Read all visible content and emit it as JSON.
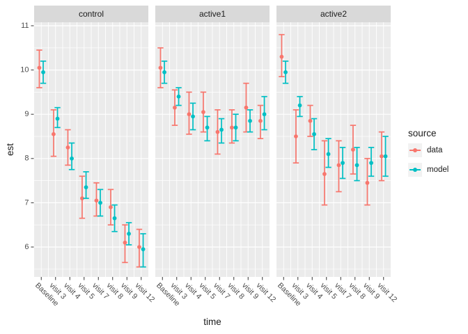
{
  "chart_data": {
    "type": "pointrange",
    "title": "",
    "xlabel": "time",
    "ylabel": "est",
    "facets": [
      "control",
      "active1",
      "active2"
    ],
    "categories": [
      "Baseline",
      "visit 3",
      "visit 4",
      "visit 5",
      "visit 7",
      "visit 8",
      "visit 9",
      "visit 12"
    ],
    "y_axis": {
      "ticks": [
        11,
        10,
        9,
        8,
        7,
        6
      ],
      "minor_step": 0.5,
      "ylim": [
        5.3,
        11.1
      ],
      "grid": "on"
    },
    "legend": {
      "title": "source",
      "position": "right",
      "entries": [
        {
          "label": "data",
          "color": "#F8766D"
        },
        {
          "label": "model",
          "color": "#00BFC4"
        }
      ]
    },
    "colors": {
      "data": "#F8766D",
      "model": "#00BFC4",
      "panel_bg": "#EBEBEB",
      "strip_bg": "#D9D9D9",
      "grid": "#FFFFFF",
      "tick": "#333333",
      "axis_text": "#4D4D4D",
      "legend_key_bg": "#F2F2F2"
    },
    "panels": [
      {
        "facet": "control",
        "series": [
          {
            "name": "data",
            "points": [
              {
                "est": 10.05,
                "lo": 9.6,
                "hi": 10.45
              },
              {
                "est": 8.55,
                "lo": 8.05,
                "hi": 9.1
              },
              {
                "est": 8.25,
                "lo": 7.85,
                "hi": 8.65
              },
              {
                "est": 7.1,
                "lo": 6.65,
                "hi": 7.6
              },
              {
                "est": 7.05,
                "lo": 6.7,
                "hi": 7.45
              },
              {
                "est": 6.9,
                "lo": 6.5,
                "hi": 7.3
              },
              {
                "est": 6.1,
                "lo": 5.65,
                "hi": 6.5
              },
              {
                "est": 6.0,
                "lo": 5.55,
                "hi": 6.4
              }
            ]
          },
          {
            "name": "model",
            "points": [
              {
                "est": 9.95,
                "lo": 9.7,
                "hi": 10.2
              },
              {
                "est": 8.9,
                "lo": 8.7,
                "hi": 9.15
              },
              {
                "est": 8.0,
                "lo": 7.75,
                "hi": 8.35
              },
              {
                "est": 7.35,
                "lo": 7.1,
                "hi": 7.7
              },
              {
                "est": 7.0,
                "lo": 6.7,
                "hi": 7.3
              },
              {
                "est": 6.65,
                "lo": 6.35,
                "hi": 6.95
              },
              {
                "est": 6.3,
                "lo": 6.05,
                "hi": 6.55
              },
              {
                "est": 5.95,
                "lo": 5.55,
                "hi": 6.3
              }
            ]
          }
        ]
      },
      {
        "facet": "active1",
        "series": [
          {
            "name": "data",
            "points": [
              {
                "est": 10.05,
                "lo": 9.6,
                "hi": 10.5
              },
              {
                "est": 9.15,
                "lo": 8.75,
                "hi": 9.55
              },
              {
                "est": 9.0,
                "lo": 8.55,
                "hi": 9.5
              },
              {
                "est": 9.05,
                "lo": 8.6,
                "hi": 9.5
              },
              {
                "est": 8.6,
                "lo": 8.1,
                "hi": 9.1
              },
              {
                "est": 8.7,
                "lo": 8.35,
                "hi": 9.1
              },
              {
                "est": 9.15,
                "lo": 8.6,
                "hi": 9.7
              },
              {
                "est": 8.85,
                "lo": 8.45,
                "hi": 9.2
              }
            ]
          },
          {
            "name": "model",
            "points": [
              {
                "est": 9.95,
                "lo": 9.7,
                "hi": 10.2
              },
              {
                "est": 9.4,
                "lo": 9.2,
                "hi": 9.6
              },
              {
                "est": 8.95,
                "lo": 8.65,
                "hi": 9.25
              },
              {
                "est": 8.7,
                "lo": 8.4,
                "hi": 8.95
              },
              {
                "est": 8.65,
                "lo": 8.35,
                "hi": 8.9
              },
              {
                "est": 8.7,
                "lo": 8.4,
                "hi": 9.0
              },
              {
                "est": 8.85,
                "lo": 8.6,
                "hi": 9.1
              },
              {
                "est": 9.0,
                "lo": 8.65,
                "hi": 9.4
              }
            ]
          }
        ]
      },
      {
        "facet": "active2",
        "series": [
          {
            "name": "data",
            "points": [
              {
                "est": 10.3,
                "lo": 9.85,
                "hi": 10.8
              },
              {
                "est": 8.5,
                "lo": 7.9,
                "hi": 9.1
              },
              {
                "est": 8.85,
                "lo": 8.5,
                "hi": 9.2
              },
              {
                "est": 7.65,
                "lo": 6.95,
                "hi": 8.4
              },
              {
                "est": 7.85,
                "lo": 7.25,
                "hi": 8.4
              },
              {
                "est": 8.2,
                "lo": 7.65,
                "hi": 8.75
              },
              {
                "est": 7.45,
                "lo": 6.95,
                "hi": 8.0
              },
              {
                "est": 8.05,
                "lo": 7.5,
                "hi": 8.6
              }
            ]
          },
          {
            "name": "model",
            "points": [
              {
                "est": 9.95,
                "lo": 9.7,
                "hi": 10.2
              },
              {
                "est": 9.2,
                "lo": 8.95,
                "hi": 9.4
              },
              {
                "est": 8.55,
                "lo": 8.2,
                "hi": 8.9
              },
              {
                "est": 8.1,
                "lo": 7.8,
                "hi": 8.45
              },
              {
                "est": 7.9,
                "lo": 7.55,
                "hi": 8.25
              },
              {
                "est": 7.85,
                "lo": 7.5,
                "hi": 8.25
              },
              {
                "est": 7.9,
                "lo": 7.6,
                "hi": 8.25
              },
              {
                "est": 8.05,
                "lo": 7.6,
                "hi": 8.5
              }
            ]
          }
        ]
      }
    ]
  }
}
